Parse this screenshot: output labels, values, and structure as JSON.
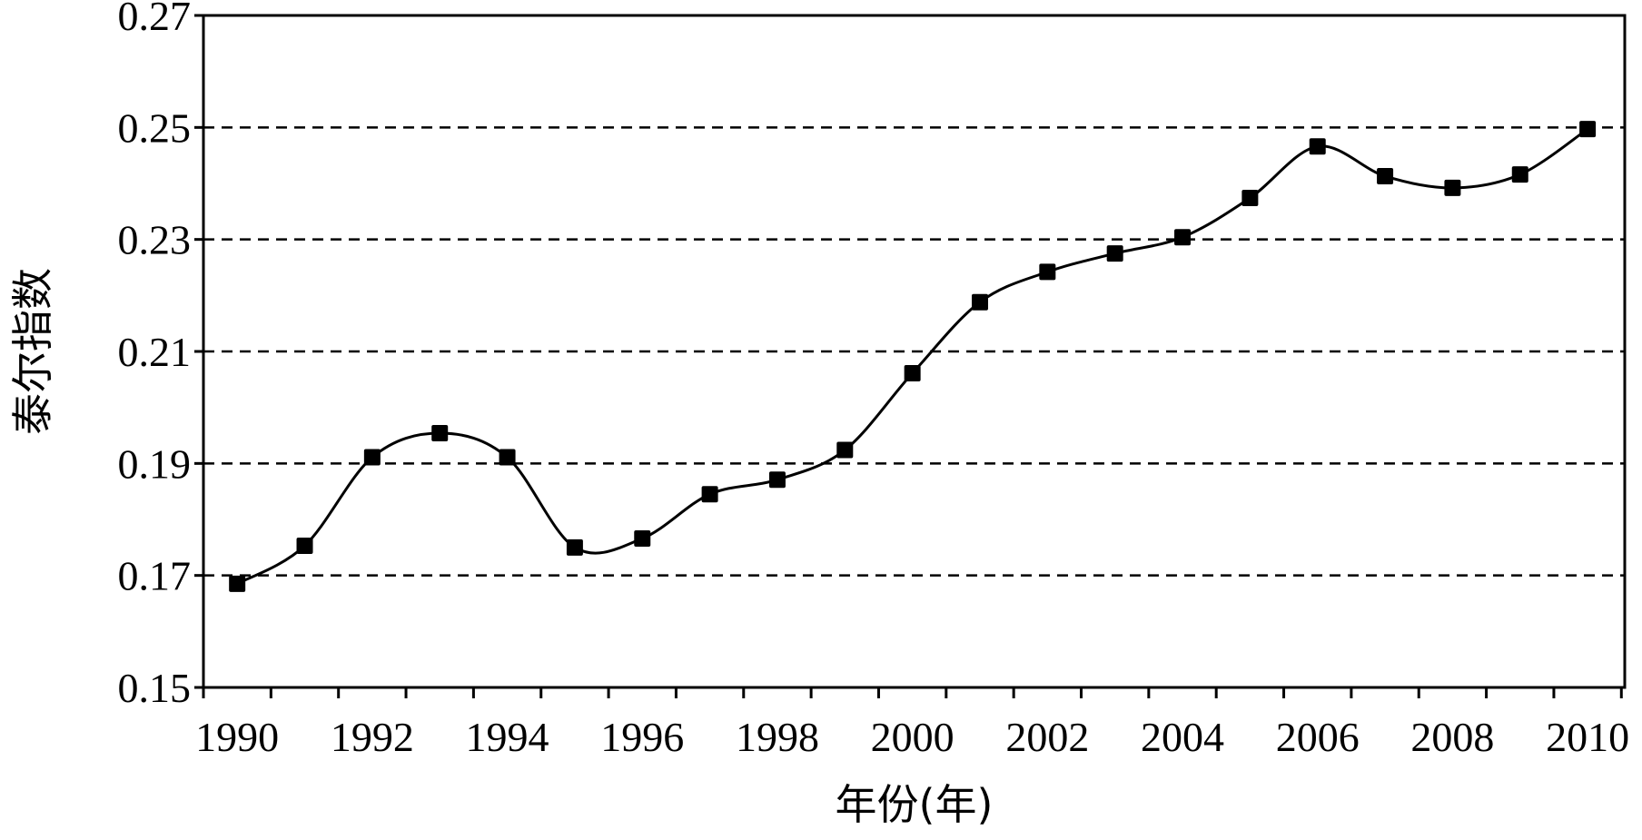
{
  "chart_data": {
    "type": "line",
    "title": "",
    "xlabel": "年份(年)",
    "ylabel": "泰尔指数",
    "x": [
      1990,
      1991,
      1992,
      1993,
      1994,
      1995,
      1996,
      1997,
      1998,
      1999,
      2000,
      2001,
      2002,
      2003,
      2004,
      2005,
      2006,
      2007,
      2008,
      2009,
      2010
    ],
    "series": [
      {
        "name": "",
        "values": [
          0.1685,
          0.1753,
          0.1911,
          0.1954,
          0.1911,
          0.175,
          0.1766,
          0.1845,
          0.1871,
          0.1924,
          0.2061,
          0.2188,
          0.2242,
          0.2275,
          0.2304,
          0.2374,
          0.2466,
          0.2413,
          0.2392,
          0.2416,
          0.2497
        ],
        "color": "#000000",
        "marker": "square",
        "smooth": true
      }
    ],
    "xlim": [
      1990,
      2010
    ],
    "ylim": [
      0.15,
      0.27
    ],
    "x_ticks": [
      "1990",
      "1992",
      "1994",
      "1996",
      "1998",
      "2000",
      "2002",
      "2004",
      "2006",
      "2008",
      "2010"
    ],
    "y_ticks": [
      "0.15",
      "0.17",
      "0.19",
      "0.21",
      "0.23",
      "0.25",
      "0.27"
    ],
    "grid": "horizontal dashed",
    "legend": "none"
  }
}
